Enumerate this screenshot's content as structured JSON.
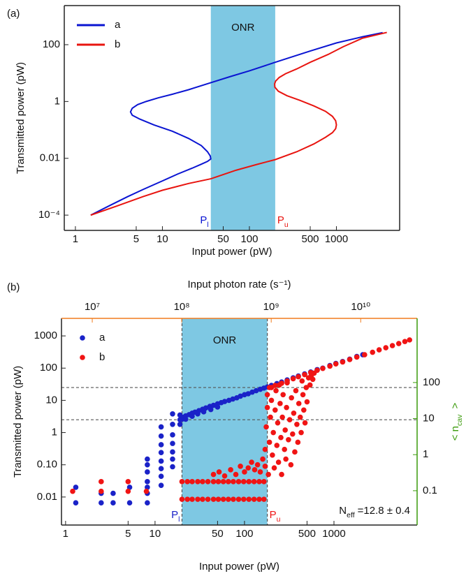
{
  "chart_data": [
    {
      "panel_label": "(a)",
      "type": "line",
      "xlabel": "Input power (pW)",
      "ylabel": "Transmitted power (pW)",
      "log_x": true,
      "log_y": true,
      "xlim": [
        0.745,
        5330
      ],
      "ylim": [
        2.9e-05,
        2377
      ],
      "xticks": [
        1,
        5,
        10,
        50,
        100,
        500,
        1000
      ],
      "yticks": [
        {
          "value": 0.0001,
          "label": "10⁻⁴"
        },
        0.01,
        1,
        100
      ],
      "shaded_region": {
        "xlim": [
          36,
          198
        ],
        "color": "#7ec8e3",
        "label": "ONR"
      },
      "annotations": {
        "lower": {
          "main": "P",
          "sub": "l"
        },
        "upper": {
          "main": "P",
          "sub": "u"
        }
      },
      "legend": "upper left",
      "series": [
        {
          "name": "a",
          "color": "#0a14d2",
          "x": [
            1.5,
            2.5,
            4,
            6,
            10,
            15,
            22,
            28,
            33,
            36,
            35.5,
            33,
            28,
            20,
            13,
            8,
            5.5,
            4.5,
            4.3,
            4.5,
            5.2,
            6.5,
            9,
            13,
            20,
            36,
            60,
            100,
            198,
            500,
            1000,
            2000,
            3400
          ],
          "y": [
            0.0001,
            0.00022,
            0.00045,
            0.0008,
            0.0016,
            0.0028,
            0.0045,
            0.0062,
            0.0078,
            0.0095,
            0.012,
            0.017,
            0.028,
            0.05,
            0.09,
            0.15,
            0.24,
            0.33,
            0.43,
            0.58,
            0.78,
            1.0,
            1.35,
            1.8,
            2.6,
            4.6,
            7.5,
            12,
            24,
            60,
            115,
            190,
            265
          ]
        },
        {
          "name": "b",
          "color": "#e8140f",
          "x": [
            1.5,
            3,
            6,
            10,
            20,
            36,
            70,
            120,
            198,
            350,
            550,
            750,
            900,
            980,
            1000,
            980,
            900,
            750,
            550,
            380,
            270,
            215,
            196,
            195,
            200,
            220,
            260,
            350,
            500,
            800,
            1200,
            2000,
            3800
          ],
          "y": [
            0.0001,
            0.00021,
            0.00045,
            0.00075,
            0.0013,
            0.0019,
            0.0038,
            0.006,
            0.009,
            0.017,
            0.032,
            0.055,
            0.08,
            0.11,
            0.15,
            0.21,
            0.3,
            0.45,
            0.7,
            1.1,
            1.6,
            2.3,
            3.2,
            4.2,
            5.2,
            7,
            9.5,
            14,
            24,
            45,
            85,
            170,
            270
          ]
        }
      ]
    },
    {
      "panel_label": "(b)",
      "type": "scatter",
      "xlabel": "Input power (pW)",
      "ylabel": "Transmitted power (pW)",
      "x2label": "Input photon rate (s⁻¹)",
      "y2label": {
        "main": "< n",
        "sub": "cav",
        "rest": " >"
      },
      "log_x": true,
      "log_y": true,
      "xlim": [
        0.9,
        8500
      ],
      "ylim": [
        0.00135,
        3500
      ],
      "xticks": [
        1,
        5,
        10,
        50,
        100,
        500,
        1000
      ],
      "yticks": [
        1000,
        100,
        10,
        1,
        {
          "value": 0.1,
          "label": "0.10"
        },
        0.01
      ],
      "x2lim": [
        4530000,
        42700000000
      ],
      "x2ticks": [
        {
          "value": 10000000,
          "label": "10⁷"
        },
        {
          "value": 100000000,
          "label": "10⁸"
        },
        {
          "value": 1000000000,
          "label": "10⁹"
        },
        {
          "value": 10000000000,
          "label": "10¹⁰"
        }
      ],
      "x2color": "#f07c1e",
      "y2lim": [
        0.0112,
        6000
      ],
      "y2ticks": [
        100,
        10,
        1,
        0.1
      ],
      "y2color": "#3a9a0a",
      "shaded_region": {
        "xlim": [
          20,
          180
        ],
        "color": "#7ec8e3",
        "label": "ONR"
      },
      "dashed_edges": true,
      "hlines": [
        25,
        2.5
      ],
      "annotations": {
        "lower": {
          "main": "P",
          "sub": "l"
        },
        "upper": {
          "main": "P",
          "sub": "u"
        },
        "note": {
          "main": "N",
          "sub": "eff",
          "rest": "=12.8 ± 0.4"
        }
      },
      "legend": "upper left",
      "series": [
        {
          "name": "a",
          "color": "#1a22c8",
          "x": [
            1.3,
            1.3,
            2.5,
            2.5,
            3.4,
            3.4,
            5.2,
            5.2,
            8.2,
            8.2,
            8.2,
            8.2,
            8.2,
            8.2,
            8.2,
            11.7,
            11.7,
            11.7,
            11.7,
            11.7,
            11.7,
            11.7,
            11.7,
            15.7,
            15.7,
            15.7,
            15.7,
            15.7,
            15.7,
            15.7,
            19,
            19,
            19,
            20,
            21,
            22,
            24,
            26,
            28,
            31,
            34,
            37,
            41,
            45,
            50,
            55,
            60,
            67,
            74,
            82,
            90,
            100,
            110,
            122,
            135,
            150,
            165,
            180,
            200,
            230,
            260,
            300,
            350,
            400,
            470,
            550,
            650,
            750,
            900,
            1050,
            1250,
            1500,
            1800,
            2100,
            22,
            26,
            30,
            35,
            42,
            50
          ],
          "y": [
            0.02,
            0.0066,
            0.013,
            0.0066,
            0.013,
            0.0066,
            0.02,
            0.0066,
            0.15,
            0.1,
            0.06,
            0.03,
            0.02,
            0.013,
            0.0066,
            1.5,
            0.78,
            0.42,
            0.24,
            0.13,
            0.076,
            0.044,
            0.023,
            3.8,
            1.8,
            0.85,
            0.46,
            0.25,
            0.15,
            0.087,
            3.5,
            2.5,
            1.8,
            2.6,
            3.0,
            3.3,
            3.6,
            4.0,
            4.3,
            4.8,
            5.3,
            5.8,
            6.5,
            7.0,
            7.8,
            8.5,
            9.2,
            10,
            11,
            12,
            13.5,
            15,
            16,
            18,
            20,
            22,
            24,
            26,
            29,
            33,
            37,
            43,
            50,
            57,
            66,
            76,
            90,
            100,
            120,
            140,
            160,
            190,
            230,
            260,
            2.6,
            3.2,
            3.8,
            4.4,
            5.2,
            6.2
          ]
        },
        {
          "name": "b",
          "color": "#f01414",
          "x": [
            1.2,
            2.5,
            2.5,
            5,
            5,
            8,
            20,
            23,
            26,
            30,
            34,
            39,
            45,
            51,
            58,
            66,
            75,
            86,
            98,
            112,
            128,
            146,
            165,
            20,
            23,
            26,
            30,
            34,
            39,
            45,
            51,
            58,
            66,
            75,
            86,
            98,
            112,
            128,
            146,
            165,
            45,
            52,
            60,
            70,
            80,
            90,
            100,
            110,
            120,
            130,
            140,
            150,
            160,
            170,
            170,
            175,
            180,
            180,
            185,
            190,
            195,
            200,
            200,
            205,
            210,
            215,
            220,
            225,
            230,
            235,
            240,
            245,
            250,
            255,
            260,
            265,
            270,
            280,
            285,
            290,
            295,
            300,
            310,
            320,
            330,
            335,
            345,
            355,
            365,
            375,
            385,
            395,
            405,
            420,
            430,
            440,
            450,
            460,
            475,
            490,
            500,
            520,
            540,
            560,
            580,
            600,
            190,
            220,
            260,
            300,
            350,
            400,
            470,
            550,
            650,
            750,
            900,
            1050,
            1250,
            1500,
            1800,
            2200,
            2700,
            3200,
            3800,
            4500,
            5300,
            6200,
            7000
          ],
          "y": [
            0.015,
            0.03,
            0.015,
            0.03,
            0.015,
            0.015,
            0.0085,
            0.0085,
            0.0085,
            0.0085,
            0.0085,
            0.0085,
            0.0085,
            0.0085,
            0.0085,
            0.0085,
            0.0085,
            0.0085,
            0.0085,
            0.0085,
            0.0085,
            0.0085,
            0.0085,
            0.03,
            0.03,
            0.03,
            0.03,
            0.03,
            0.03,
            0.03,
            0.03,
            0.03,
            0.03,
            0.03,
            0.03,
            0.03,
            0.03,
            0.03,
            0.03,
            0.03,
            0.05,
            0.06,
            0.045,
            0.07,
            0.05,
            0.09,
            0.06,
            0.08,
            0.12,
            0.07,
            0.1,
            0.06,
            0.15,
            0.09,
            0.3,
            1.5,
            6,
            15,
            0.05,
            0.5,
            3,
            10,
            25,
            0.2,
            1,
            0.08,
            5,
            20,
            0.4,
            2,
            0.12,
            30,
            8,
            0.7,
            0.05,
            3,
            15,
            0.3,
            1.2,
            0.15,
            6,
            35,
            0.6,
            2.5,
            0.1,
            12,
            0.9,
            4,
            0.25,
            20,
            1.8,
            0.5,
            8,
            3,
            1,
            40,
            15,
            5,
            2,
            25,
            9,
            50,
            30,
            60,
            45,
            70,
            25,
            29,
            34,
            40,
            47,
            54,
            63,
            73,
            86,
            98,
            115,
            135,
            155,
            185,
            220,
            260,
            310,
            370,
            430,
            500,
            580,
            670,
            750
          ]
        }
      ]
    }
  ]
}
